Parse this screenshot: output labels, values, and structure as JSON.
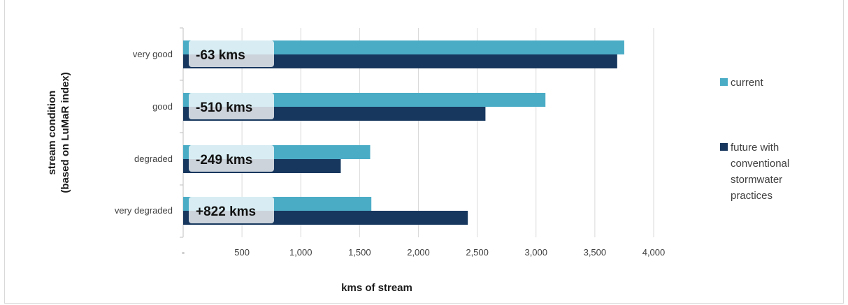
{
  "chart_data": {
    "type": "bar",
    "orientation": "horizontal",
    "categories": [
      "very good",
      "good",
      "degraded",
      "very degraded"
    ],
    "series": [
      {
        "name": "current",
        "color": "#4bacc6",
        "values": [
          3750,
          3080,
          1590,
          1600
        ]
      },
      {
        "name": "future with conventional stormwater practices",
        "color": "#17375e",
        "values": [
          3690,
          2570,
          1340,
          2420
        ]
      }
    ],
    "legend_lines": [
      [
        "current"
      ],
      [
        "future with",
        "conventional",
        "stormwater",
        "practices"
      ]
    ],
    "annotations": [
      "-63 kms",
      "-510 kms",
      "-249 kms",
      "+822 kms"
    ],
    "xlabel": "kms of stream",
    "ylabel_lines": [
      "stream  condition",
      "(based on LuMaR index)"
    ],
    "xlim": [
      0,
      4000
    ],
    "xticks": [
      0,
      500,
      1000,
      1500,
      2000,
      2500,
      3000,
      3500,
      4000
    ],
    "xtick_labels": [
      "-",
      "500",
      "1,000",
      "1,500",
      "2,000",
      "2,500",
      "3,000",
      "3,500",
      "4,000"
    ],
    "grid": true,
    "legend_position": "right"
  }
}
